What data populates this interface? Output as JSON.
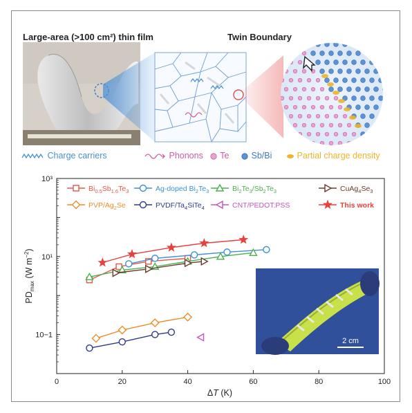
{
  "figure": {
    "titles": {
      "left": "Large-area (>100 cm²) thin film",
      "right": "Twin Boundary"
    },
    "top_legend": [
      {
        "label": "Charge carriers",
        "color": "#4a8fd6",
        "icon": "zigzag-wave-icon"
      },
      {
        "label": "Phonons",
        "color": "#d25aa6",
        "icon": "wavy-arrow-icon"
      },
      {
        "label": "Te",
        "color": "#d25aa6",
        "icon": "pink-atom-icon"
      },
      {
        "label": "Sb/Bi",
        "color": "#3f78c7",
        "icon": "blue-atom-icon"
      },
      {
        "label": "Partial charge density",
        "color": "#f0b32a",
        "icon": "yellow-lobe-icon"
      }
    ],
    "inset_scale_label": "2 cm"
  },
  "chart_data": {
    "type": "line",
    "xlabel": "ΔT (K)",
    "ylabel": "PDmax (W m−2)",
    "xlim": [
      0,
      100
    ],
    "ylim": [
      0.01,
      1000
    ],
    "yscale": "log",
    "xticks": [
      "0",
      "20",
      "40",
      "60",
      "80",
      "100"
    ],
    "yticks": [
      "10−1",
      "10¹",
      "10³"
    ],
    "legend_placement": "top",
    "series": [
      {
        "name": "Bi0.5Sb1.6Te3",
        "color": "#e8564a",
        "marker": "square",
        "x": [
          10,
          19,
          28,
          40
        ],
        "y": [
          2.5,
          5.5,
          7.5,
          9.0
        ]
      },
      {
        "name": "Ag-doped Bi2Te3",
        "color": "#3e8fd6",
        "marker": "circle",
        "x": [
          22,
          30,
          42,
          52,
          64
        ],
        "y": [
          6.5,
          9.0,
          11.0,
          13.0,
          15.0
        ]
      },
      {
        "name": "Bi2Te3/Sb2Te3",
        "color": "#4caf50",
        "marker": "triangle-up",
        "x": [
          10,
          20,
          30,
          40,
          50,
          60
        ],
        "y": [
          3.0,
          4.5,
          5.5,
          7.5,
          10.0,
          12.5
        ]
      },
      {
        "name": "CuAg4Se3",
        "color": "#6b3a2a",
        "marker": "triangle-right",
        "x": [
          18,
          28,
          40,
          45
        ],
        "y": [
          3.8,
          4.8,
          6.8,
          7.5
        ]
      },
      {
        "name": "PVP/Ag2Se",
        "color": "#ef8c2a",
        "marker": "diamond",
        "x": [
          12,
          20,
          30,
          40
        ],
        "y": [
          0.08,
          0.13,
          0.2,
          0.28
        ]
      },
      {
        "name": "PVDF/Ta4SiTe4",
        "color": "#2e3a8c",
        "marker": "circle",
        "x": [
          10,
          20,
          30,
          35
        ],
        "y": [
          0.045,
          0.065,
          0.1,
          0.115
        ]
      },
      {
        "name": "CNT/PEDOT:PSS",
        "color": "#c654c6",
        "marker": "triangle-left",
        "x": [
          44
        ],
        "y": [
          0.085
        ]
      },
      {
        "name": "This work",
        "color": "#e8403a",
        "marker": "star",
        "x": [
          14,
          23,
          35,
          45,
          57
        ],
        "y": [
          7.0,
          11.5,
          17.0,
          22.0,
          27.0
        ]
      }
    ]
  }
}
